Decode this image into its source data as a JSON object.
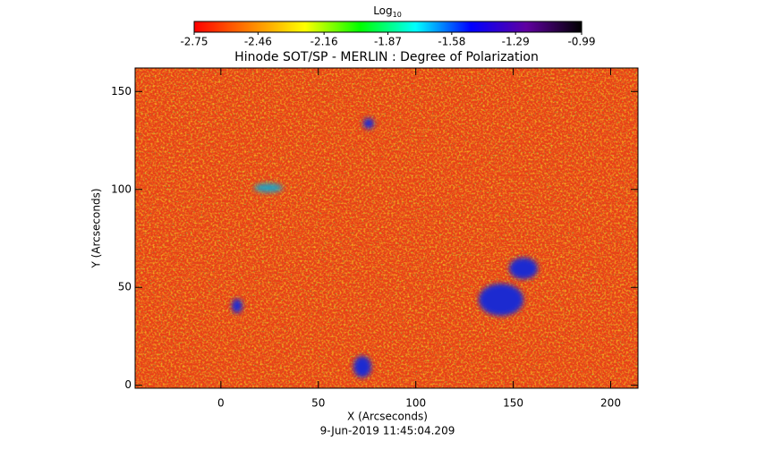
{
  "chart_data": {
    "type": "image",
    "title": "Hinode SOT/SP - MERLIN : Degree of Polarization",
    "x_label": "X (Arcseconds)",
    "y_label": "Y (Arcseconds)",
    "footer": "9-Jun-2019 11:45:04.209",
    "xlim": [
      -44,
      214
    ],
    "xticks": [
      0,
      50,
      100,
      150,
      200
    ],
    "ylim": [
      -1.5,
      162
    ],
    "yticks": [
      0,
      50,
      100,
      150
    ],
    "colorbar_title": "Log",
    "colorbar_title_subscript": "10",
    "clim": [
      -2.75,
      -0.99
    ],
    "cticks": [
      -2.75,
      -2.46,
      -2.16,
      -1.87,
      -1.58,
      -1.29,
      -0.99
    ],
    "colorbar_colors": [
      "#ff0000",
      "#ff8000",
      "#ffff00",
      "#00ff00",
      "#00ffff",
      "#0000ff",
      "#6000a0",
      "#000000"
    ]
  }
}
